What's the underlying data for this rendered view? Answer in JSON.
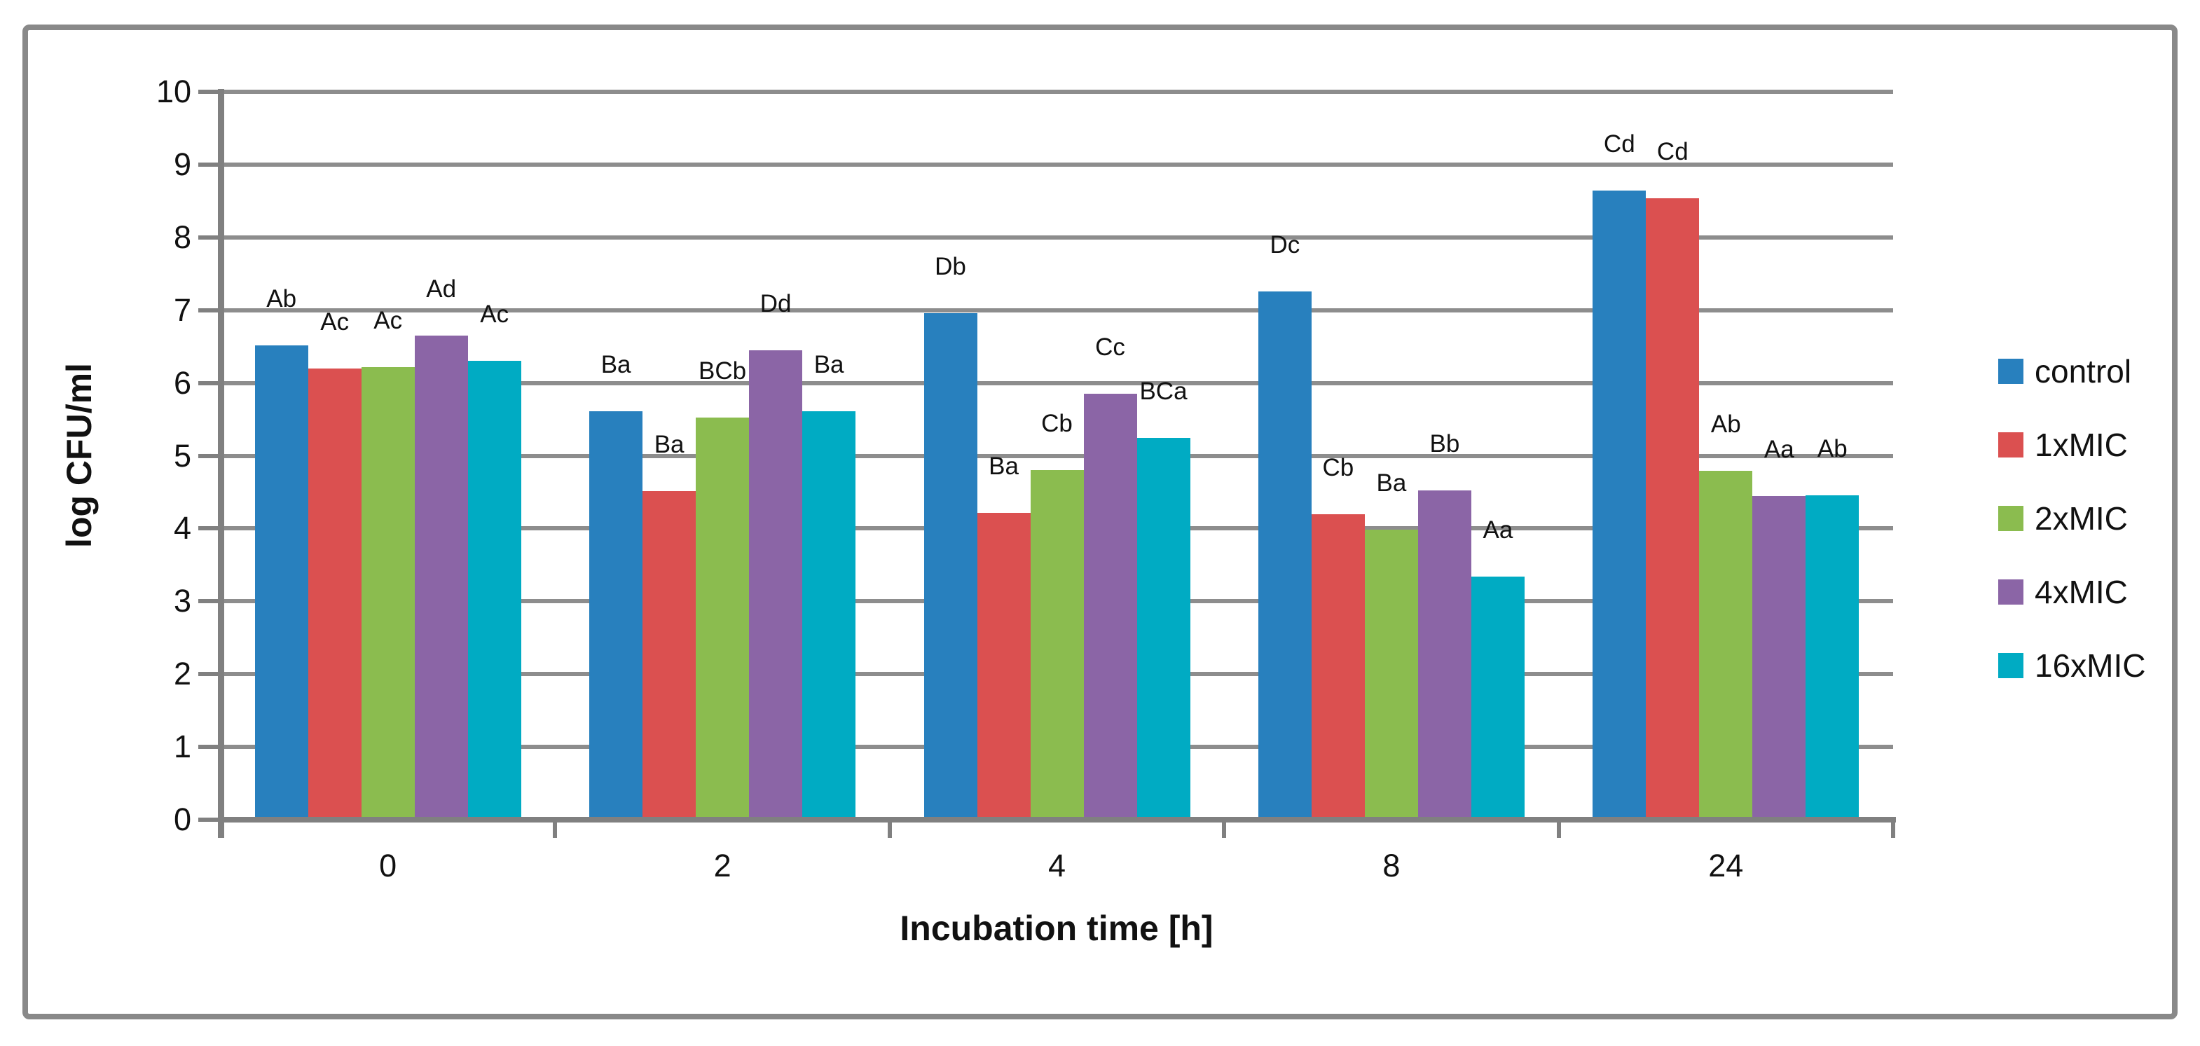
{
  "figure": {
    "background": "#ffffff",
    "frame_color": "#898989",
    "gridline_color": "#8d8d8d",
    "axis_color": "#808080"
  },
  "chart_data": {
    "type": "bar",
    "title": "",
    "xlabel": "Incubation time [h]",
    "ylabel": "log CFU/ml",
    "ylim": [
      0,
      10
    ],
    "yticks": [
      "0",
      "1",
      "2",
      "3",
      "4",
      "5",
      "6",
      "7",
      "8",
      "9",
      "10"
    ],
    "grid": "horizontal",
    "legend_position": "right",
    "categories": [
      "0",
      "2",
      "4",
      "8",
      "24"
    ],
    "series": [
      {
        "name": "control",
        "color": "#2880be",
        "values": [
          6.52,
          5.61,
          6.96,
          7.26,
          8.64
        ],
        "labels": [
          "Ab",
          "Ba",
          "Db",
          "Dc",
          "Cd"
        ]
      },
      {
        "name": "1xMIC",
        "color": "#db5050",
        "values": [
          6.2,
          4.51,
          4.22,
          4.2,
          8.54
        ],
        "labels": [
          "Ac",
          "Ba",
          "Ba",
          "Cb",
          "Cd"
        ]
      },
      {
        "name": "2xMIC",
        "color": "#8bbc4f",
        "values": [
          6.22,
          5.52,
          4.8,
          3.98,
          4.79
        ],
        "labels": [
          "Ac",
          "BCb",
          "Cb",
          "Ba",
          "Ab"
        ]
      },
      {
        "name": "4xMIC",
        "color": "#8b65a6",
        "values": [
          6.65,
          6.45,
          5.85,
          4.52,
          4.45
        ],
        "labels": [
          "Ad",
          "Dd",
          "Cc",
          "Bb",
          "Aa"
        ]
      },
      {
        "name": "16xMIC",
        "color": "#00abc3",
        "values": [
          6.3,
          5.61,
          5.25,
          3.34,
          4.46
        ],
        "labels": [
          "Ac",
          "Ba",
          "BCa",
          "Aa",
          "Ab"
        ]
      }
    ]
  }
}
